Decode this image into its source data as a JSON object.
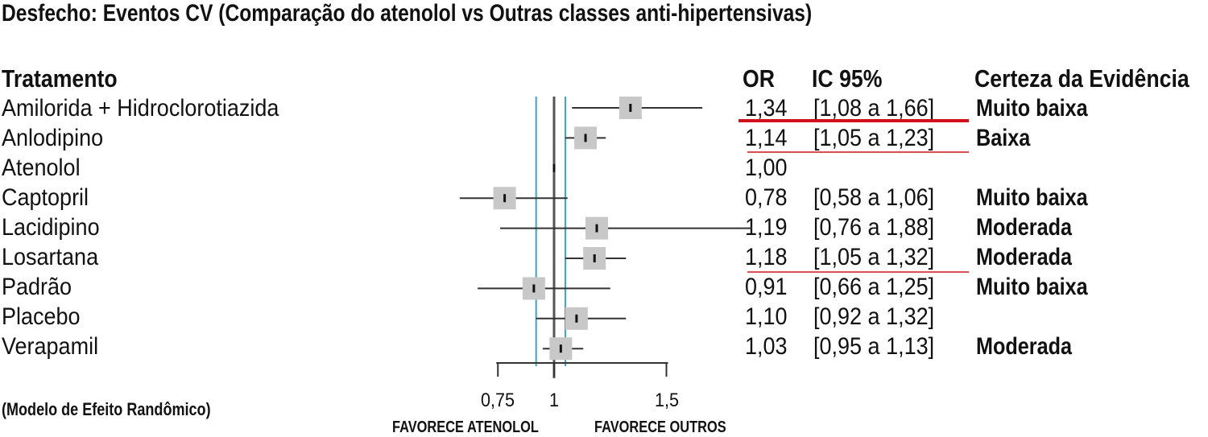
{
  "title": "Desfecho: Eventos CV (Comparação do atenolol vs Outras classes anti-hipertensivas)",
  "headers": {
    "treatment": "Tratamento",
    "or": "OR",
    "ci": "IC 95%",
    "certainty": "Certeza da Evidência"
  },
  "model_note": "(Modelo de Efeito Randômico)",
  "favors_left": "FAVORECE ATENOLOL",
  "favors_right": "FAVORECE OUTROS",
  "colors": {
    "reference_line": "#3aa5c4",
    "highlight_line": "#d0101b",
    "box": "#c8c8c8",
    "whisker": "#333333"
  },
  "rows": [
    {
      "treatment": "Amilorida + Hidroclorotiazida",
      "or": "1,34",
      "ci": "[1,08 a 1,66]",
      "certainty": "Muito baixa"
    },
    {
      "treatment": "Anlodipino",
      "or": "1,14",
      "ci": "[1,05 a 1,23]",
      "certainty": "Baixa"
    },
    {
      "treatment": "Atenolol",
      "or": "1,00",
      "ci": "",
      "certainty": ""
    },
    {
      "treatment": "Captopril",
      "or": "0,78",
      "ci": "[0,58 a 1,06]",
      "certainty": "Muito baixa"
    },
    {
      "treatment": "Lacidipino",
      "or": "1,19",
      "ci": "[0,76 a 1,88]",
      "certainty": "Moderada"
    },
    {
      "treatment": "Losartana",
      "or": "1,18",
      "ci": "[1,05 a 1,32]",
      "certainty": "Moderada"
    },
    {
      "treatment": "Padrão",
      "or": "0,91",
      "ci": "[0,66 a 1,25]",
      "certainty": "Muito baixa"
    },
    {
      "treatment": "Placebo",
      "or": "1,10",
      "ci": "[0,92 a 1,32]",
      "certainty": ""
    },
    {
      "treatment": "Verapamil",
      "or": "1,03",
      "ci": "[0,95 a 1,13]",
      "certainty": "Moderada"
    }
  ],
  "chart_data": {
    "type": "forest",
    "title": "Desfecho: Eventos CV (Comparação do atenolol vs Outras classes anti-hipertensivas)",
    "xlabel_left": "FAVORECE ATENOLOL",
    "xlabel_right": "FAVORECE OUTROS",
    "x_ticks": [
      {
        "value": 0.75,
        "label": "0,75"
      },
      {
        "value": 1,
        "label": "1"
      },
      {
        "value": 1.5,
        "label": "1,5"
      }
    ],
    "null_line": 1,
    "reference_lines": [
      0.92,
      1.05
    ],
    "series": [
      {
        "label": "Amilorida + Hidroclorotiazida",
        "or": 1.34,
        "low": 1.08,
        "high": 1.66
      },
      {
        "label": "Anlodipino",
        "or": 1.14,
        "low": 1.05,
        "high": 1.23
      },
      {
        "label": "Atenolol",
        "or": 1.0,
        "low": 1.0,
        "high": 1.0
      },
      {
        "label": "Captopril",
        "or": 0.78,
        "low": 0.58,
        "high": 1.06
      },
      {
        "label": "Lacidipino",
        "or": 1.19,
        "low": 0.76,
        "high": 1.88
      },
      {
        "label": "Losartana",
        "or": 1.18,
        "low": 1.05,
        "high": 1.32
      },
      {
        "label": "Padrão",
        "or": 0.91,
        "low": 0.66,
        "high": 1.25
      },
      {
        "label": "Placebo",
        "or": 1.1,
        "low": 0.92,
        "high": 1.32
      },
      {
        "label": "Verapamil",
        "or": 1.03,
        "low": 0.95,
        "high": 1.13
      }
    ]
  }
}
